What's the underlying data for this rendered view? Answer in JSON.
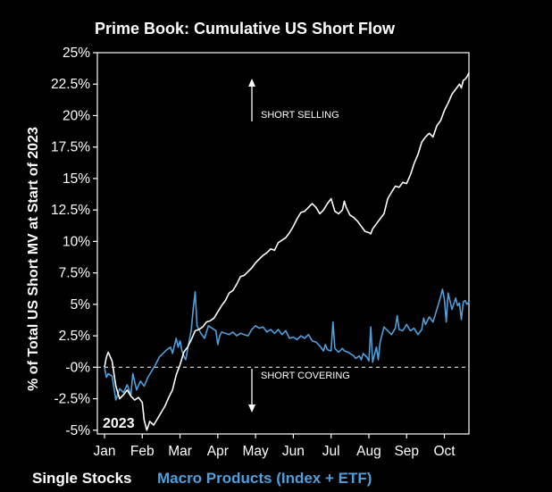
{
  "chart_data": {
    "type": "line",
    "title": "Prime Book: Cumulative US Short Flow",
    "ylabel": "% of Total US Short MV at Start of 2023",
    "xlabel": "",
    "ylim": [
      -5.3,
      25
    ],
    "y_ticks": [
      25,
      22.5,
      20,
      17.5,
      15,
      12.5,
      10,
      7.5,
      5,
      2.5,
      0,
      -2.5,
      -5
    ],
    "y_tick_labels": [
      "25%",
      "22.5%",
      "20%",
      "17.5%",
      "15%",
      "12.5%",
      "10%",
      "7.5%",
      "5%",
      "2.5%",
      "-0%",
      "-2.5%",
      "-5%"
    ],
    "x_range": [
      0,
      9.65
    ],
    "x_ticks": [
      0,
      1,
      2,
      3,
      4,
      5,
      6,
      7,
      8,
      9
    ],
    "x_tick_labels": [
      "Jan",
      "Feb",
      "Mar",
      "Apr",
      "May",
      "Jun",
      "Jul",
      "Aug",
      "Sep",
      "Oct"
    ],
    "year_label": "2023",
    "annotations": {
      "up": "SHORT SELLING",
      "down": "SHORT COVERING"
    },
    "series": [
      {
        "name": "Single Stocks",
        "color": "#ffffff",
        "points": [
          [
            0,
            0
          ],
          [
            0.05,
            0.8
          ],
          [
            0.1,
            1.2
          ],
          [
            0.2,
            0.5
          ],
          [
            0.3,
            -1.5
          ],
          [
            0.4,
            -2.5
          ],
          [
            0.5,
            -2.2
          ],
          [
            0.6,
            -1.8
          ],
          [
            0.7,
            -2.3
          ],
          [
            0.8,
            -2.6
          ],
          [
            0.9,
            -2.4
          ],
          [
            1.0,
            -2.8
          ],
          [
            1.05,
            -4.2
          ],
          [
            1.12,
            -5.0
          ],
          [
            1.2,
            -4.3
          ],
          [
            1.3,
            -4.6
          ],
          [
            1.4,
            -4.1
          ],
          [
            1.5,
            -3.6
          ],
          [
            1.6,
            -3.1
          ],
          [
            1.7,
            -2.4
          ],
          [
            1.8,
            -1.8
          ],
          [
            1.9,
            -0.6
          ],
          [
            2.0,
            0.2
          ],
          [
            2.1,
            1.2
          ],
          [
            2.2,
            1.6
          ],
          [
            2.3,
            2.2
          ],
          [
            2.4,
            2.9
          ],
          [
            2.5,
            3.0
          ],
          [
            2.6,
            3.2
          ],
          [
            2.7,
            3.6
          ],
          [
            2.8,
            3.7
          ],
          [
            2.9,
            3.9
          ],
          [
            3.0,
            4.4
          ],
          [
            3.1,
            4.9
          ],
          [
            3.2,
            5.3
          ],
          [
            3.3,
            5.9
          ],
          [
            3.4,
            6.1
          ],
          [
            3.5,
            6.6
          ],
          [
            3.6,
            7.2
          ],
          [
            3.7,
            7.3
          ],
          [
            3.8,
            7.6
          ],
          [
            3.9,
            7.9
          ],
          [
            4.0,
            8.3
          ],
          [
            4.1,
            8.6
          ],
          [
            4.2,
            8.9
          ],
          [
            4.3,
            9.1
          ],
          [
            4.4,
            9.4
          ],
          [
            4.5,
            9.3
          ],
          [
            4.6,
            9.9
          ],
          [
            4.7,
            10.1
          ],
          [
            4.8,
            10.3
          ],
          [
            4.9,
            10.7
          ],
          [
            5.0,
            11.2
          ],
          [
            5.1,
            11.8
          ],
          [
            5.2,
            12.3
          ],
          [
            5.3,
            12.4
          ],
          [
            5.4,
            12.7
          ],
          [
            5.5,
            13.0
          ],
          [
            5.6,
            12.7
          ],
          [
            5.7,
            12.2
          ],
          [
            5.8,
            12.5
          ],
          [
            5.9,
            13.0
          ],
          [
            6.0,
            13.4
          ],
          [
            6.05,
            12.9
          ],
          [
            6.1,
            12.4
          ],
          [
            6.2,
            12.2
          ],
          [
            6.3,
            12.5
          ],
          [
            6.35,
            13.2
          ],
          [
            6.4,
            12.7
          ],
          [
            6.5,
            12.1
          ],
          [
            6.6,
            11.9
          ],
          [
            6.7,
            11.6
          ],
          [
            6.8,
            11.2
          ],
          [
            6.9,
            10.8
          ],
          [
            7.0,
            10.7
          ],
          [
            7.05,
            10.6
          ],
          [
            7.1,
            11.0
          ],
          [
            7.2,
            11.4
          ],
          [
            7.3,
            11.8
          ],
          [
            7.4,
            12.2
          ],
          [
            7.5,
            13.4
          ],
          [
            7.6,
            13.9
          ],
          [
            7.7,
            14.4
          ],
          [
            7.8,
            14.3
          ],
          [
            7.9,
            14.7
          ],
          [
            8.0,
            14.6
          ],
          [
            8.1,
            15.3
          ],
          [
            8.2,
            16.2
          ],
          [
            8.3,
            16.9
          ],
          [
            8.4,
            17.9
          ],
          [
            8.5,
            18.3
          ],
          [
            8.6,
            18.6
          ],
          [
            8.7,
            18.3
          ],
          [
            8.8,
            19.2
          ],
          [
            8.9,
            19.6
          ],
          [
            9.0,
            20.4
          ],
          [
            9.1,
            21.0
          ],
          [
            9.2,
            21.7
          ],
          [
            9.3,
            22.1
          ],
          [
            9.4,
            22.5
          ],
          [
            9.45,
            22.2
          ],
          [
            9.5,
            22.8
          ],
          [
            9.55,
            22.9
          ],
          [
            9.6,
            23.1
          ],
          [
            9.65,
            23.4
          ]
        ]
      },
      {
        "name": "Macro Products (Index + ETF)",
        "color": "#4f9fdc",
        "points": [
          [
            0,
            0
          ],
          [
            0.05,
            -0.8
          ],
          [
            0.1,
            -0.5
          ],
          [
            0.2,
            -0.7
          ],
          [
            0.3,
            -2.6
          ],
          [
            0.4,
            -1.7
          ],
          [
            0.5,
            -2.0
          ],
          [
            0.6,
            -1.4
          ],
          [
            0.7,
            -2.2
          ],
          [
            0.75,
            -0.5
          ],
          [
            0.85,
            -1.8
          ],
          [
            0.95,
            -1.1
          ],
          [
            1.05,
            -1.5
          ],
          [
            1.15,
            -0.8
          ],
          [
            1.25,
            -0.3
          ],
          [
            1.35,
            0.2
          ],
          [
            1.45,
            0.8
          ],
          [
            1.55,
            1.1
          ],
          [
            1.65,
            1.4
          ],
          [
            1.75,
            1.6
          ],
          [
            1.8,
            1.1
          ],
          [
            1.9,
            2.3
          ],
          [
            1.95,
            1.6
          ],
          [
            2.0,
            2.1
          ],
          [
            2.05,
            1.3
          ],
          [
            2.1,
            0.9
          ],
          [
            2.15,
            0.6
          ],
          [
            2.2,
            1.4
          ],
          [
            2.3,
            3.0
          ],
          [
            2.35,
            4.7
          ],
          [
            2.4,
            6.0
          ],
          [
            2.45,
            3.3
          ],
          [
            2.55,
            2.7
          ],
          [
            2.65,
            2.3
          ],
          [
            2.75,
            3.3
          ],
          [
            2.85,
            3.1
          ],
          [
            2.95,
            2.9
          ],
          [
            3.0,
            1.8
          ],
          [
            3.05,
            2.5
          ],
          [
            3.1,
            2.8
          ],
          [
            3.2,
            2.7
          ],
          [
            3.3,
            2.6
          ],
          [
            3.4,
            2.8
          ],
          [
            3.5,
            2.5
          ],
          [
            3.6,
            2.7
          ],
          [
            3.7,
            2.6
          ],
          [
            3.8,
            2.5
          ],
          [
            3.9,
            3.0
          ],
          [
            4.0,
            3.3
          ],
          [
            4.1,
            3.1
          ],
          [
            4.2,
            3.2
          ],
          [
            4.3,
            2.8
          ],
          [
            4.4,
            3.0
          ],
          [
            4.5,
            2.7
          ],
          [
            4.6,
            3.0
          ],
          [
            4.7,
            2.6
          ],
          [
            4.8,
            2.9
          ],
          [
            4.9,
            2.3
          ],
          [
            5.0,
            2.4
          ],
          [
            5.1,
            2.2
          ],
          [
            5.2,
            2.5
          ],
          [
            5.3,
            2.3
          ],
          [
            5.4,
            2.6
          ],
          [
            5.5,
            2.1
          ],
          [
            5.6,
            2.0
          ],
          [
            5.7,
            1.7
          ],
          [
            5.8,
            1.3
          ],
          [
            5.85,
            1.8
          ],
          [
            5.9,
            1.4
          ],
          [
            6.0,
            1.3
          ],
          [
            6.05,
            3.6
          ],
          [
            6.1,
            1.5
          ],
          [
            6.2,
            1.2
          ],
          [
            6.3,
            1.5
          ],
          [
            6.35,
            1.3
          ],
          [
            6.45,
            1.2
          ],
          [
            6.55,
            1.0
          ],
          [
            6.6,
            0.9
          ],
          [
            6.65,
            0.7
          ],
          [
            6.75,
            0.9
          ],
          [
            6.8,
            0.6
          ],
          [
            6.85,
            1.1
          ],
          [
            6.95,
            0.8
          ],
          [
            7.0,
            0.5
          ],
          [
            7.05,
            3.2
          ],
          [
            7.1,
            0.4
          ],
          [
            7.2,
            1.6
          ],
          [
            7.25,
            0.6
          ],
          [
            7.3,
            2.0
          ],
          [
            7.4,
            3.2
          ],
          [
            7.5,
            2.9
          ],
          [
            7.6,
            2.6
          ],
          [
            7.7,
            3.1
          ],
          [
            7.75,
            4.1
          ],
          [
            7.8,
            3.0
          ],
          [
            7.9,
            2.9
          ],
          [
            8.0,
            3.4
          ],
          [
            8.1,
            2.9
          ],
          [
            8.2,
            3.1
          ],
          [
            8.3,
            2.6
          ],
          [
            8.4,
            3.0
          ],
          [
            8.45,
            3.9
          ],
          [
            8.5,
            3.4
          ],
          [
            8.6,
            4.0
          ],
          [
            8.7,
            3.6
          ],
          [
            8.8,
            4.6
          ],
          [
            8.9,
            5.6
          ],
          [
            8.95,
            6.2
          ],
          [
            9.0,
            5.4
          ],
          [
            9.05,
            3.6
          ],
          [
            9.1,
            5.9
          ],
          [
            9.2,
            4.6
          ],
          [
            9.3,
            5.5
          ],
          [
            9.35,
            4.9
          ],
          [
            9.4,
            5.1
          ],
          [
            9.45,
            3.8
          ],
          [
            9.5,
            5.2
          ],
          [
            9.55,
            5.3
          ],
          [
            9.6,
            5.0
          ],
          [
            9.65,
            5.2
          ]
        ]
      }
    ]
  }
}
